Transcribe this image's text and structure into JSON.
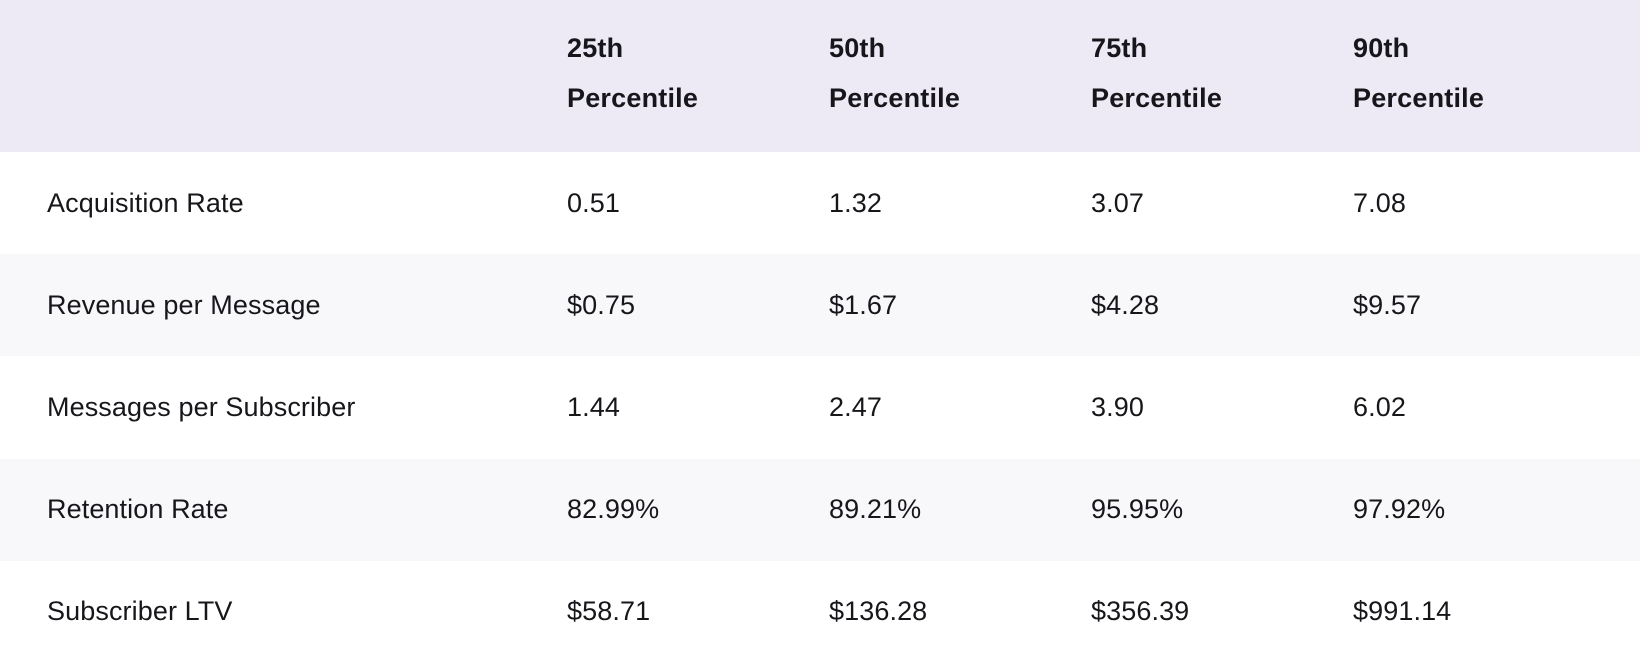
{
  "chart_data": {
    "type": "table",
    "title": "",
    "columns": [
      "",
      "25th Percentile",
      "50th Percentile",
      "75th Percentile",
      "90th Percentile"
    ],
    "rows": [
      {
        "label": "Acquisition Rate",
        "values": [
          "0.51",
          "1.32",
          "3.07",
          "7.08"
        ]
      },
      {
        "label": "Revenue per Message",
        "values": [
          "$0.75",
          "$1.67",
          "$4.28",
          "$9.57"
        ]
      },
      {
        "label": "Messages per Subscriber",
        "values": [
          "1.44",
          "2.47",
          "3.90",
          "6.02"
        ]
      },
      {
        "label": "Retention Rate",
        "values": [
          "82.99%",
          "89.21%",
          "95.95%",
          "97.92%"
        ]
      },
      {
        "label": "Subscriber LTV",
        "values": [
          "$58.71",
          "$136.28",
          "$356.39",
          "$991.14"
        ]
      }
    ],
    "layout": {
      "header_position": "top",
      "row_striping": "alternate",
      "grid": "off"
    },
    "colors": {
      "header_bg": "#EDEAF5",
      "stripe_bg": "#F8F8FB",
      "row_bg": "#FFFFFF",
      "text": "#17171B"
    }
  }
}
